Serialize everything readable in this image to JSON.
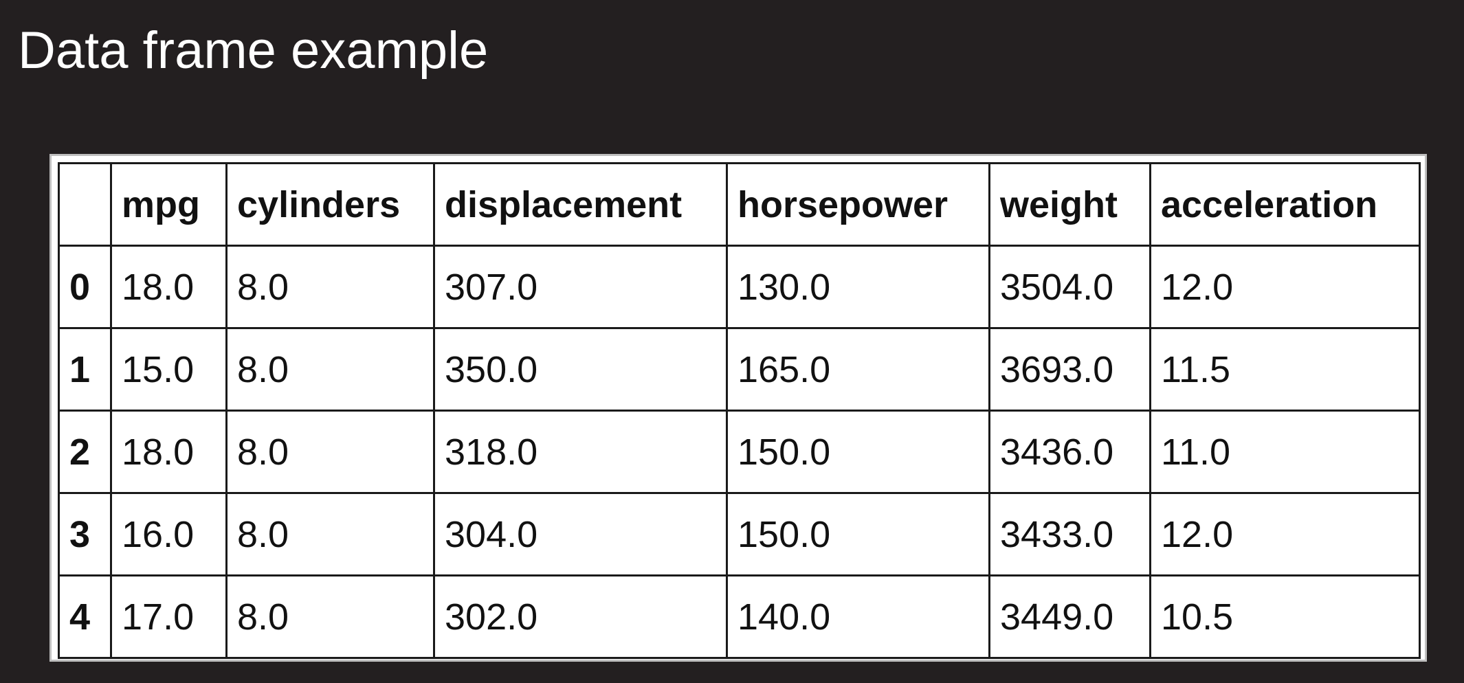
{
  "slide": {
    "title": "Data frame example"
  },
  "table": {
    "index_header": "",
    "columns": [
      "mpg",
      "cylinders",
      "displacement",
      "horsepower",
      "weight",
      "acceleration"
    ],
    "rows": [
      {
        "index": "0",
        "cells": [
          "18.0",
          "8.0",
          "307.0",
          "130.0",
          "3504.0",
          "12.0"
        ]
      },
      {
        "index": "1",
        "cells": [
          "15.0",
          "8.0",
          "350.0",
          "165.0",
          "3693.0",
          "11.5"
        ]
      },
      {
        "index": "2",
        "cells": [
          "18.0",
          "8.0",
          "318.0",
          "150.0",
          "3436.0",
          "11.0"
        ]
      },
      {
        "index": "3",
        "cells": [
          "16.0",
          "8.0",
          "304.0",
          "150.0",
          "3433.0",
          "12.0"
        ]
      },
      {
        "index": "4",
        "cells": [
          "17.0",
          "8.0",
          "302.0",
          "140.0",
          "3449.0",
          "10.5"
        ]
      }
    ]
  },
  "colors": {
    "background": "#231f20",
    "title": "#ffffff",
    "table_background": "#ffffff",
    "grid_lines": "#1a1a1a",
    "frame_border": "#bfbfbf"
  }
}
